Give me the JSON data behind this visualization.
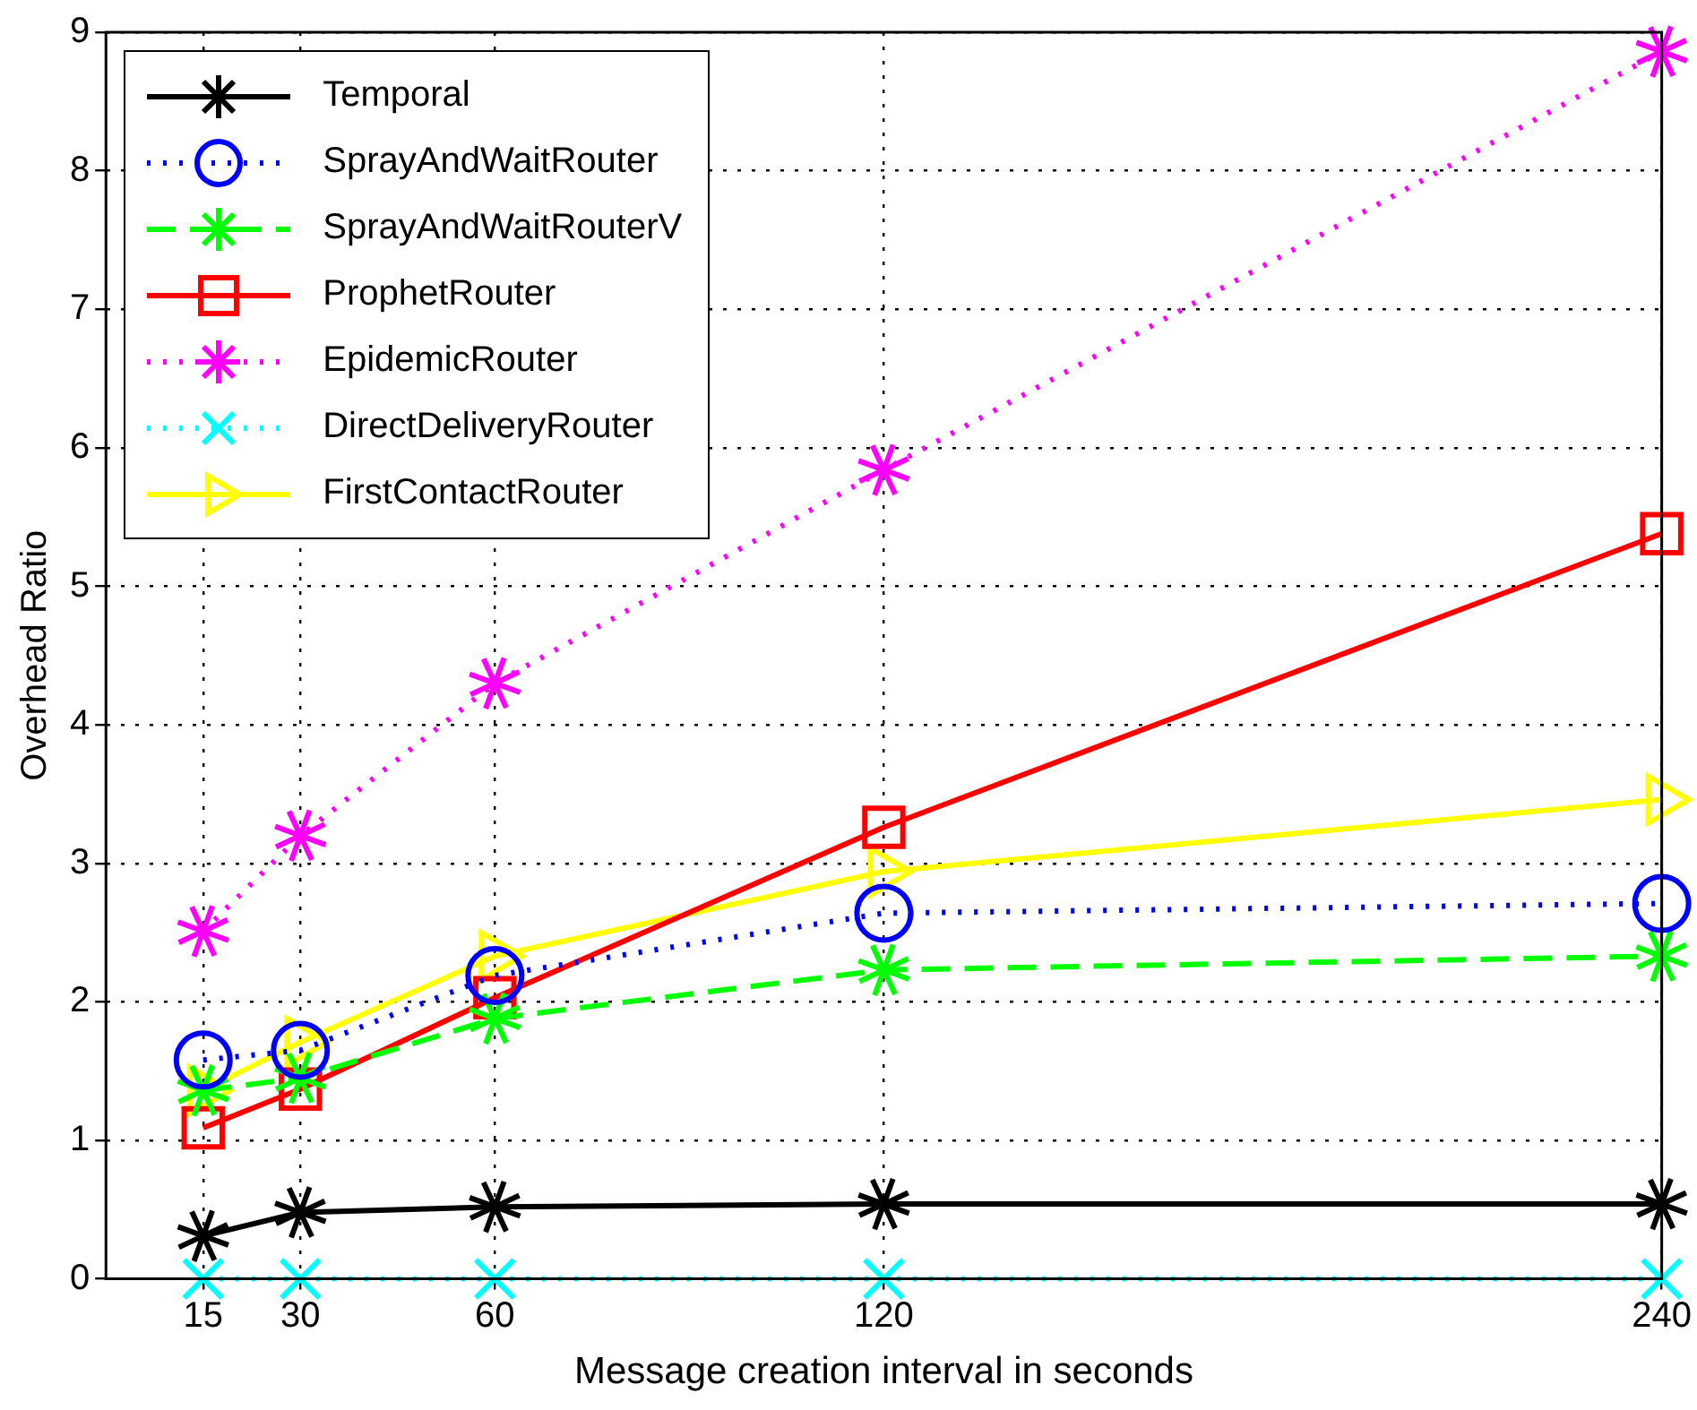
{
  "chart_data": {
    "type": "line",
    "xlabel": "Message creation interval in seconds",
    "ylabel": "Overhead Ratio",
    "x": [
      15,
      30,
      60,
      120,
      240
    ],
    "xlim": [
      0,
      240
    ],
    "xticks": [
      15,
      30,
      60,
      120,
      240
    ],
    "ylim": [
      0,
      9
    ],
    "yticks": [
      0,
      1,
      2,
      3,
      4,
      5,
      6,
      7,
      8,
      9
    ],
    "grid": true,
    "legend": "top left",
    "series": [
      {
        "name": "Temporal",
        "color": "#000000",
        "marker": "cross",
        "line_style": "solid",
        "values": [
          0.31,
          0.48,
          0.52,
          0.54,
          0.54
        ]
      },
      {
        "name": "SprayAndWaitRouter",
        "color": "#0000ff",
        "marker": "circle",
        "line_style": "dotted",
        "values": [
          1.58,
          1.65,
          2.19,
          2.64,
          2.71
        ]
      },
      {
        "name": "SprayAndWaitRouterV",
        "color": "#00ff00",
        "marker": "cross",
        "line_style": "dashed",
        "values": [
          1.36,
          1.45,
          1.88,
          2.23,
          2.33
        ]
      },
      {
        "name": "ProphetRouter",
        "color": "#ff0000",
        "marker": "square",
        "line_style": "solid",
        "values": [
          1.09,
          1.37,
          2.03,
          3.26,
          5.38
        ]
      },
      {
        "name": "EpidemicRouter",
        "color": "#ff00ff",
        "marker": "cross",
        "line_style": "dotted",
        "values": [
          2.51,
          3.2,
          4.3,
          5.84,
          8.86
        ]
      },
      {
        "name": "DirectDeliveryRouter",
        "color": "#00ffff",
        "marker": "x",
        "line_style": "dotted",
        "values": [
          0,
          0,
          0,
          0,
          0
        ]
      },
      {
        "name": "FirstContactRouter",
        "color": "#ffff00",
        "marker": "triangle",
        "line_style": "solid",
        "values": [
          1.36,
          1.71,
          2.33,
          2.94,
          3.46
        ]
      }
    ]
  }
}
